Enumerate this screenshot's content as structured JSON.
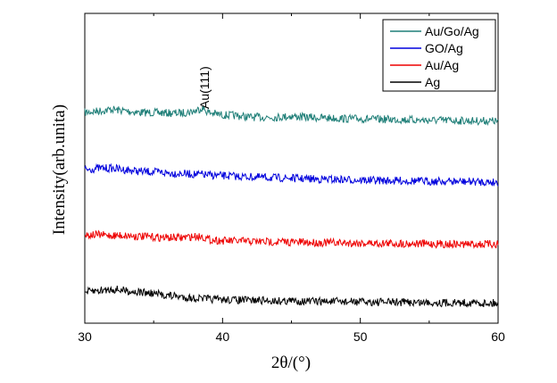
{
  "chart_data": {
    "type": "line",
    "xlabel": "2θ/(°)",
    "ylabel": "Intensity(arb.unita)",
    "xlim": [
      30,
      60
    ],
    "ylim": [
      0,
      100
    ],
    "xticks": [
      "30",
      "40",
      "50",
      "60"
    ],
    "yticks_shown": false,
    "grid": false,
    "legend_position": "top-right",
    "annotation": {
      "text": "Au(111)",
      "x": 38.5
    },
    "x": [
      30,
      31,
      32,
      33,
      34,
      35,
      36,
      37,
      38,
      38.5,
      39,
      40,
      41,
      42,
      43,
      44,
      45,
      46,
      47,
      48,
      49,
      50,
      51,
      52,
      53,
      54,
      55,
      56,
      57,
      58,
      59,
      60
    ],
    "series": [
      {
        "name": "Au/Go/Ag",
        "color": "#1f7f78",
        "values": [
          68,
          68.5,
          69,
          68.5,
          68,
          68,
          67.8,
          67.8,
          68.5,
          69.5,
          68,
          67.2,
          67,
          66.5,
          66.5,
          66.5,
          66.8,
          66.5,
          66.3,
          66.2,
          66,
          66,
          65.8,
          65.8,
          65.7,
          65.6,
          65.5,
          65.5,
          65.4,
          65.3,
          65.3,
          65.2
        ]
      },
      {
        "name": "GO/Ag",
        "color": "#0000dd",
        "values": [
          49.5,
          50,
          50,
          49.5,
          49,
          48.8,
          48.5,
          48.3,
          48,
          48,
          47.8,
          47.6,
          47.4,
          47.2,
          47,
          46.9,
          46.8,
          46.6,
          46.5,
          46.4,
          46.3,
          46.2,
          46.1,
          46,
          46,
          45.9,
          45.8,
          45.8,
          45.7,
          45.7,
          45.6,
          45.5
        ]
      },
      {
        "name": "Au/Ag",
        "color": "#ee0000",
        "values": [
          28.5,
          28.5,
          28.3,
          28.3,
          28,
          27.8,
          27.6,
          27.6,
          28,
          28,
          27,
          26.6,
          26.5,
          26.4,
          26.3,
          26.3,
          26.2,
          26.1,
          26,
          26,
          25.9,
          25.9,
          25.8,
          25.8,
          25.7,
          25.7,
          25.6,
          25.6,
          25.5,
          25.5,
          25.5,
          25.5
        ]
      },
      {
        "name": "Ag",
        "color": "#000000",
        "values": [
          10,
          10.5,
          11,
          10.5,
          10,
          9.5,
          9,
          8.5,
          8,
          8,
          7.8,
          7.6,
          7.5,
          7.4,
          7.3,
          7.2,
          7.2,
          7.1,
          7,
          7,
          6.9,
          6.9,
          6.8,
          6.8,
          6.8,
          6.7,
          6.7,
          6.6,
          6.6,
          6.6,
          6.5,
          6.5
        ]
      }
    ]
  }
}
